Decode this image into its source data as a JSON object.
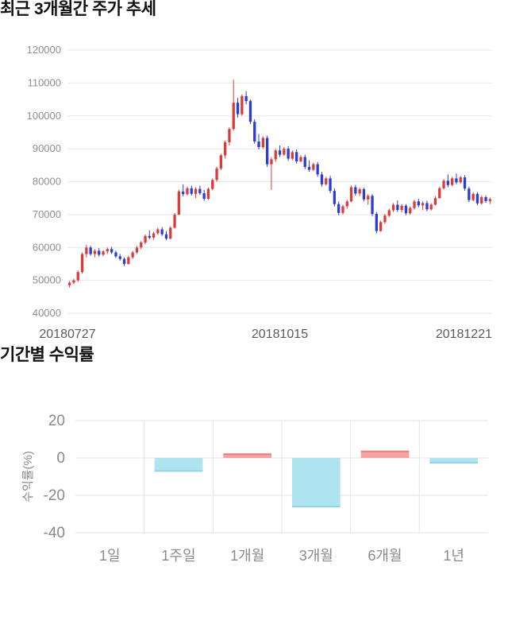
{
  "page": {
    "background": "#ffffff"
  },
  "chart_data": [
    {
      "type": "candlestick",
      "title": "최근 3개월간 주가 추세",
      "ylim": [
        40000,
        120000
      ],
      "yticks": [
        120000,
        110000,
        100000,
        90000,
        80000,
        70000,
        60000,
        50000,
        40000
      ],
      "x_axis_labels": [
        "20180727",
        "20181015",
        "20181221"
      ],
      "grid": true,
      "legend": false,
      "up_color": "#dc3b3b",
      "down_color": "#2b3dd3",
      "candles": [
        [
          48500,
          49800,
          47800,
          49300
        ],
        [
          49300,
          50500,
          48800,
          50000
        ],
        [
          50000,
          53000,
          49500,
          52500
        ],
        [
          52500,
          58500,
          52000,
          58000
        ],
        [
          58000,
          60800,
          57000,
          60000
        ],
        [
          60000,
          60500,
          57500,
          58000
        ],
        [
          58000,
          59500,
          57000,
          59000
        ],
        [
          59000,
          59800,
          57200,
          57800
        ],
        [
          57800,
          59200,
          57300,
          58800
        ],
        [
          58800,
          60000,
          58000,
          59500
        ],
        [
          59500,
          60200,
          58000,
          58500
        ],
        [
          58500,
          59000,
          56800,
          57300
        ],
        [
          57300,
          58000,
          56000,
          56500
        ],
        [
          56500,
          57000,
          54300,
          55000
        ],
        [
          55000,
          57500,
          54800,
          57000
        ],
        [
          57000,
          59000,
          56500,
          58500
        ],
        [
          58500,
          60500,
          58000,
          60000
        ],
        [
          60000,
          62000,
          59500,
          61500
        ],
        [
          61500,
          64000,
          61000,
          63500
        ],
        [
          63500,
          65200,
          62500,
          63000
        ],
        [
          63000,
          64800,
          62300,
          64300
        ],
        [
          64300,
          66000,
          63800,
          65500
        ],
        [
          65500,
          66200,
          63500,
          64000
        ],
        [
          64000,
          65000,
          62200,
          62700
        ],
        [
          62700,
          66500,
          62500,
          66000
        ],
        [
          66000,
          70500,
          65800,
          70000
        ],
        [
          70000,
          77500,
          69800,
          77000
        ],
        [
          77000,
          79200,
          75500,
          76200
        ],
        [
          76200,
          78500,
          75800,
          78000
        ],
        [
          78000,
          78800,
          75800,
          76300
        ],
        [
          76300,
          78300,
          75000,
          77800
        ],
        [
          77800,
          78800,
          76000,
          76500
        ],
        [
          76500,
          77500,
          74200,
          74800
        ],
        [
          74800,
          78200,
          74500,
          77800
        ],
        [
          77800,
          81000,
          77400,
          80500
        ],
        [
          80500,
          84500,
          80000,
          84000
        ],
        [
          84000,
          88500,
          83500,
          88000
        ],
        [
          88000,
          92500,
          87000,
          92000
        ],
        [
          92000,
          96500,
          91000,
          96000
        ],
        [
          96000,
          111000,
          95500,
          104000
        ],
        [
          104000,
          105500,
          99500,
          100500
        ],
        [
          100500,
          106500,
          100000,
          106000
        ],
        [
          106000,
          107500,
          103500,
          104500
        ],
        [
          104500,
          105000,
          97500,
          98200
        ],
        [
          98200,
          99000,
          91500,
          92200
        ],
        [
          92200,
          94500,
          89800,
          90500
        ],
        [
          90500,
          93800,
          90000,
          93300
        ],
        [
          93300,
          94000,
          84500,
          85300
        ],
        [
          85300,
          87500,
          77500,
          86800
        ],
        [
          86800,
          90000,
          86000,
          89500
        ],
        [
          89500,
          91000,
          87500,
          88200
        ],
        [
          88200,
          90500,
          87800,
          90000
        ],
        [
          90000,
          90800,
          86300,
          87000
        ],
        [
          87000,
          89500,
          86500,
          89000
        ],
        [
          89000,
          89800,
          85500,
          86200
        ],
        [
          86200,
          88000,
          85800,
          87500
        ],
        [
          87500,
          88200,
          83800,
          84500
        ],
        [
          84500,
          86500,
          83000,
          83600
        ],
        [
          83600,
          85800,
          83200,
          85300
        ],
        [
          85300,
          86000,
          81500,
          82200
        ],
        [
          82200,
          83000,
          78500,
          79200
        ],
        [
          79200,
          81500,
          78800,
          81000
        ],
        [
          81000,
          81800,
          76500,
          77200
        ],
        [
          77200,
          78000,
          72500,
          73200
        ],
        [
          73200,
          74000,
          69800,
          70500
        ],
        [
          70500,
          73000,
          70000,
          72500
        ],
        [
          72500,
          74500,
          71800,
          74000
        ],
        [
          74000,
          78800,
          73800,
          78300
        ],
        [
          78300,
          79000,
          75800,
          76400
        ],
        [
          76400,
          78200,
          75600,
          77700
        ],
        [
          77700,
          78200,
          74000,
          74600
        ],
        [
          74600,
          76200,
          73000,
          75700
        ],
        [
          75700,
          76200,
          69500,
          70200
        ],
        [
          70200,
          70800,
          64300,
          65000
        ],
        [
          65000,
          68200,
          64800,
          67700
        ],
        [
          67700,
          70200,
          67200,
          69700
        ],
        [
          69700,
          71800,
          69200,
          71300
        ],
        [
          71300,
          73500,
          70800,
          73000
        ],
        [
          73000,
          74300,
          70800,
          71400
        ],
        [
          71400,
          73200,
          70600,
          72700
        ],
        [
          72700,
          73200,
          69800,
          70400
        ],
        [
          70400,
          72500,
          70000,
          72000
        ],
        [
          72000,
          74500,
          71500,
          74000
        ],
        [
          74000,
          74800,
          72200,
          72800
        ],
        [
          72800,
          74000,
          71300,
          73500
        ],
        [
          73500,
          74200,
          71000,
          71600
        ],
        [
          71600,
          73500,
          71200,
          73000
        ],
        [
          73000,
          75500,
          72800,
          75000
        ],
        [
          75000,
          78500,
          74800,
          78000
        ],
        [
          78000,
          80800,
          77600,
          80300
        ],
        [
          80300,
          82200,
          78300,
          79000
        ],
        [
          79000,
          81500,
          78600,
          81000
        ],
        [
          81000,
          82500,
          79200,
          79800
        ],
        [
          79800,
          81800,
          79400,
          81300
        ],
        [
          81300,
          82000,
          77200,
          77900
        ],
        [
          77900,
          78500,
          73800,
          74400
        ],
        [
          74400,
          76800,
          74000,
          76300
        ],
        [
          76300,
          76800,
          72800,
          73400
        ],
        [
          73400,
          75800,
          73000,
          75300
        ],
        [
          75300,
          75800,
          73600,
          74100
        ],
        [
          74100,
          75200,
          73200,
          74700
        ]
      ]
    },
    {
      "type": "bar",
      "title": "기간별 수익률",
      "ylabel": "수익률(%)",
      "categories": [
        "1일",
        "1주일",
        "1개월",
        "3개월",
        "6개월",
        "1년"
      ],
      "values": [
        0,
        -7,
        2,
        -26,
        3.5,
        -2.5
      ],
      "ylim": [
        -40,
        20
      ],
      "yticks": [
        20,
        0,
        -20,
        -40
      ],
      "grid": true,
      "legend": false,
      "positive_color": "#f5a3a3",
      "negative_color": "#aee3f0",
      "positive_edge": "#e87f7f",
      "negative_edge": "#8fd3e5"
    }
  ]
}
